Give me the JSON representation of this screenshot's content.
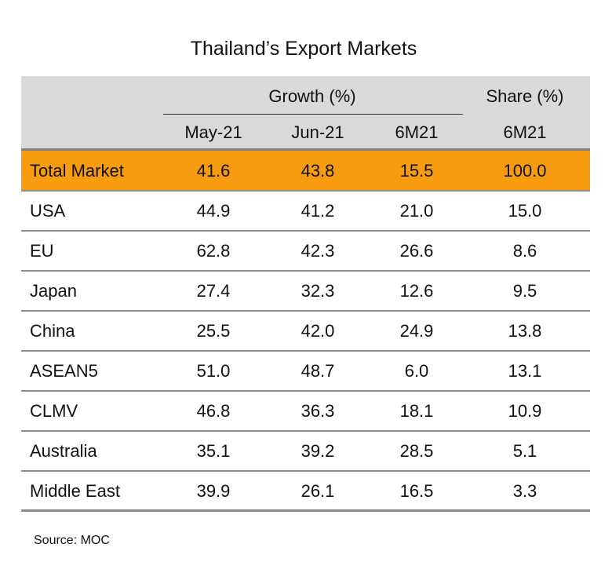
{
  "title": "Thailand’s Export Markets",
  "header": {
    "groups": [
      "Growth (%)",
      "Share (%)"
    ],
    "columns": [
      "May-21",
      "Jun-21",
      "6M21",
      "6M21"
    ]
  },
  "table": {
    "rows": [
      [
        "Total Market",
        "41.6",
        "43.8",
        "15.5",
        "100.0"
      ],
      [
        "USA",
        "44.9",
        "41.2",
        "21.0",
        "15.0"
      ],
      [
        "EU",
        "62.8",
        "42.3",
        "26.6",
        "8.6"
      ],
      [
        "Japan",
        "27.4",
        "32.3",
        "12.6",
        "9.5"
      ],
      [
        "China",
        "25.5",
        "42.0",
        "24.9",
        "13.8"
      ],
      [
        "ASEAN5",
        "51.0",
        "48.7",
        "6.0",
        "13.1"
      ],
      [
        "CLMV",
        "46.8",
        "36.3",
        "18.1",
        "10.9"
      ],
      [
        "Australia",
        "35.1",
        "39.2",
        "28.5",
        "5.1"
      ],
      [
        "Middle East",
        "39.9",
        "26.1",
        "16.5",
        "3.3"
      ]
    ]
  },
  "source": "Source: MOC"
}
